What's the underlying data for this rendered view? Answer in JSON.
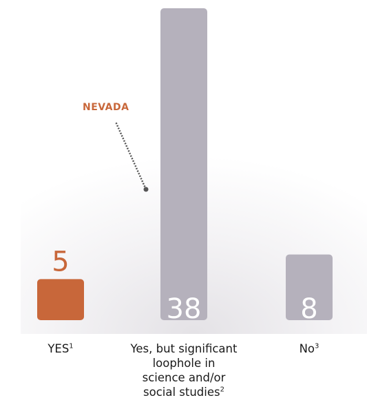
{
  "chart_data": {
    "type": "bar",
    "categories": [
      "YES",
      "Yes, but significant loophole in science and/or social studies",
      "No"
    ],
    "category_label_lines": [
      [
        "YES"
      ],
      [
        "Yes, but significant",
        "loophole in",
        "science and/or",
        "social studies"
      ]
    ],
    "category_label_lines_last": [
      "No"
    ],
    "footnote_marks": [
      "1",
      "2",
      "3"
    ],
    "values": [
      5,
      38,
      8
    ],
    "value_labels": [
      "5",
      "38",
      "8"
    ],
    "bar_colors": [
      "#c8673a",
      "#b5b1bc",
      "#b5b1bc"
    ],
    "value_label_colors": [
      "#c8673a",
      "#ffffff",
      "#ffffff"
    ],
    "annotation": {
      "text": "NEVADA",
      "color": "#c8673a",
      "points_to_category": 1
    },
    "ylim": [
      0,
      38
    ],
    "grid": false,
    "title": "",
    "xlabel": "",
    "ylabel": ""
  }
}
